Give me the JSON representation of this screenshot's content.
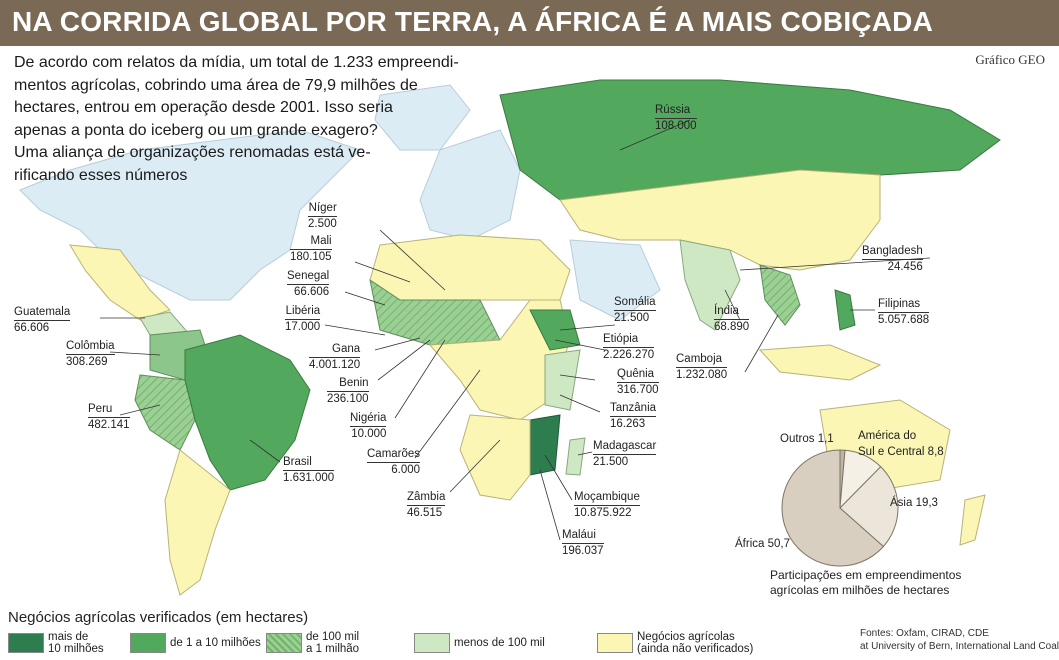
{
  "title": "NA CORRIDA GLOBAL POR TERRA, A ÁFRICA É A MAIS COBIÇADA",
  "credit": "Gráfico GEO",
  "intro": [
    "De acordo com relatos da mídia, um total de 1.233 empreendi-",
    "mentos agrícolas, cobrindo uma área de 79,9 milhões de",
    "hectares, entrou em operação desde 2001. Isso seria",
    "apenas a ponta do iceberg ou um grande exagero?",
    "Uma aliança de organizações renomadas está ve-",
    "rificando esses números"
  ],
  "colors": {
    "title_bg": "#7a6a55",
    "cat_over_10m": "#2e7d4f",
    "cat_1_10m": "#52a85c",
    "cat_100k_1m": "#8cc68a",
    "cat_under_100k": "#cde8c2",
    "cat_unverified": "#fbf6b4",
    "other_land": "#dcecf4",
    "ocean": "#ffffff"
  },
  "countries": [
    {
      "name": "Rússia",
      "value": "108.000"
    },
    {
      "name": "Níger",
      "value": "2.500"
    },
    {
      "name": "Mali",
      "value": "180.105"
    },
    {
      "name": "Senegal",
      "value": "66.606"
    },
    {
      "name": "Libéria",
      "value": "17.000"
    },
    {
      "name": "Guatemala",
      "value": "66.606"
    },
    {
      "name": "Colômbia",
      "value": "308.269"
    },
    {
      "name": "Gana",
      "value": "4.001.120"
    },
    {
      "name": "Benin",
      "value": "236.100"
    },
    {
      "name": "Peru",
      "value": "482.141"
    },
    {
      "name": "Nigéria",
      "value": "10.000"
    },
    {
      "name": "Camarões",
      "value": "6.000"
    },
    {
      "name": "Brasil",
      "value": "1.631.000"
    },
    {
      "name": "Zâmbia",
      "value": "46.515"
    },
    {
      "name": "Somália",
      "value": "21.500"
    },
    {
      "name": "Etiópia",
      "value": "2.226.270"
    },
    {
      "name": "Quênia",
      "value": "316.700"
    },
    {
      "name": "Tanzânia",
      "value": "16.263"
    },
    {
      "name": "Madagascar",
      "value": "21.500"
    },
    {
      "name": "Moçambique",
      "value": "10.875.922"
    },
    {
      "name": "Maláui",
      "value": "196.037"
    },
    {
      "name": "Bangladesh",
      "value": "24.456"
    },
    {
      "name": "Índia",
      "value": "68.890"
    },
    {
      "name": "Filipinas",
      "value": "5.057.688"
    },
    {
      "name": "Camboja",
      "value": "1.232.080"
    }
  ],
  "pie": {
    "caption_line1": "Participações em empreendimentos",
    "caption_line2": "agrícolas em milhões de hectares",
    "slices": [
      {
        "label": "África 50,7",
        "value": 50.7,
        "color": "#d9cfc0"
      },
      {
        "label": "Ásia 19,3",
        "value": 19.3,
        "color": "#ece6da"
      },
      {
        "label": "América do Sul e Central 8,8",
        "value": 8.8,
        "color": "#f4f0e6"
      },
      {
        "label": "Outros 1,1",
        "value": 1.1,
        "color": "#bfb5a5"
      }
    ],
    "label_africa": "África 50,7",
    "label_asia": "Ásia 19,3",
    "label_america_1": "América do",
    "label_america_2": "Sul e Central 8,8",
    "label_outros": "Outros 1,1"
  },
  "legend": {
    "title": "Negócios agrícolas verificados (em hectares)",
    "items": [
      {
        "line1": "mais de",
        "line2": "10 milhões"
      },
      {
        "line1": "de 1 a 10 milhões",
        "line2": ""
      },
      {
        "line1": "de 100 mil",
        "line2": "a 1 milhão"
      },
      {
        "line1": "menos de 100 mil",
        "line2": ""
      },
      {
        "line1": "Negócios agrícolas",
        "line2": "(ainda não verificados)"
      }
    ]
  },
  "sources": {
    "line1": "Fontes: Oxfam, CIRAD, CDE",
    "line2": "at University of Bern, International Land Coalition"
  }
}
